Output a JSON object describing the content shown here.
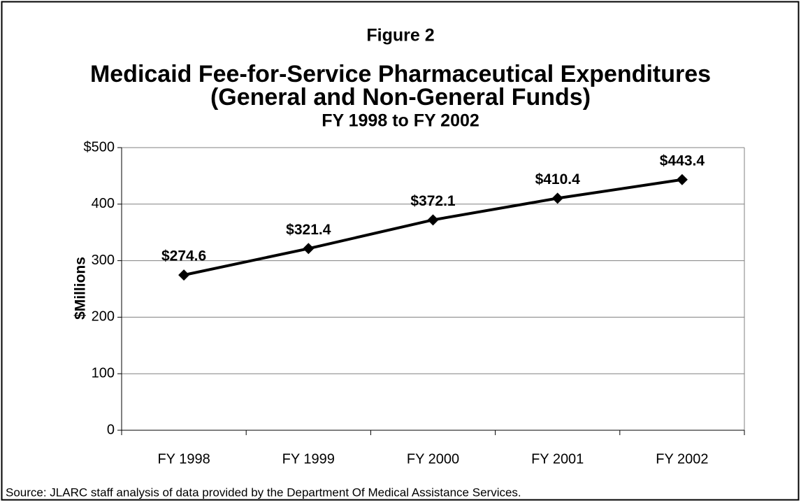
{
  "chart_data": {
    "type": "line",
    "figure_label": "Figure 2",
    "title": "Medicaid Fee-for-Service Pharmaceutical Expenditures",
    "subtitle": "(General and Non-General Funds)",
    "period": "FY 1998 to FY 2002",
    "ylabel": "$Millions",
    "source": "Source: JLARC staff analysis of data provided by the Department Of Medical Assistance Services.",
    "categories": [
      "FY 1998",
      "FY 1999",
      "FY 2000",
      "FY 2001",
      "FY 2002"
    ],
    "values": [
      274.6,
      321.4,
      372.1,
      410.4,
      443.4
    ],
    "value_labels": [
      "$274.6",
      "$321.4",
      "$372.1",
      "$410.4",
      "$443.4"
    ],
    "color": "#000000",
    "ylim": [
      0,
      500
    ],
    "yticks": [
      0,
      100,
      200,
      300,
      400,
      {
        "value": 500,
        "label": "$500"
      }
    ],
    "grid": true
  }
}
